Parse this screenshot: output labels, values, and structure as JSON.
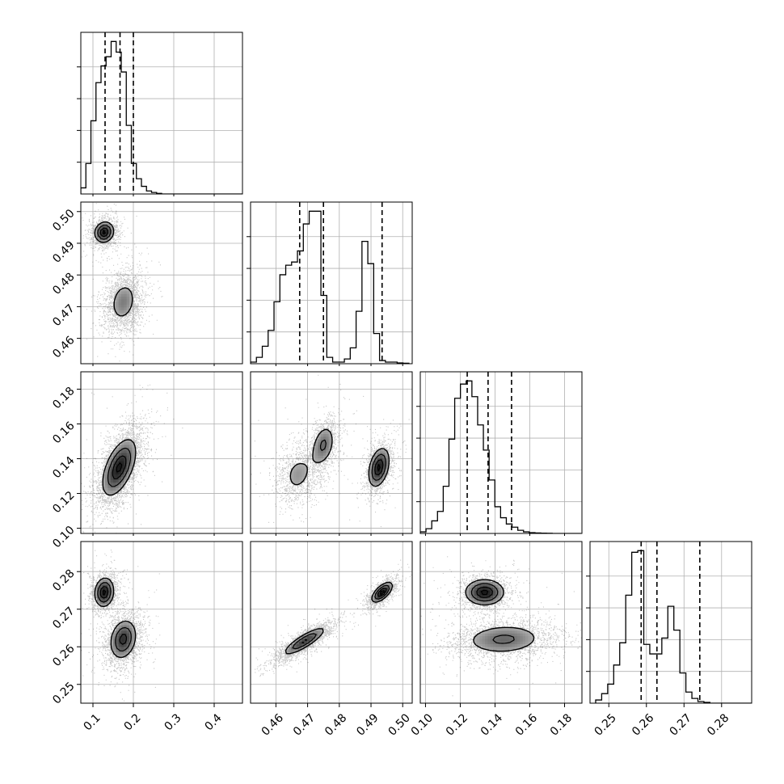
{
  "chart_data": {
    "type": "corner",
    "title": "",
    "grid": true,
    "parameters": [
      {
        "xlim": [
          0.07,
          0.47
        ],
        "ticks": [
          0.1,
          0.2,
          0.3,
          0.4
        ],
        "tick_labels": [
          "0.1",
          "0.2",
          "0.3",
          "0.4"
        ],
        "quantiles": [
          0.13,
          0.167,
          0.2
        ],
        "histogram": {
          "bin_start": 0.07,
          "bin_width": 0.0125,
          "counts": [
            0.04,
            0.2,
            0.48,
            0.73,
            0.84,
            0.9,
            1.0,
            0.93,
            0.8,
            0.45,
            0.2,
            0.1,
            0.05,
            0.02,
            0.01,
            0.004,
            0,
            0,
            0,
            0,
            0,
            0,
            0,
            0,
            0,
            0,
            0,
            0,
            0,
            0,
            0,
            0
          ]
        }
      },
      {
        "xlim": [
          0.452,
          0.503
        ],
        "ticks": [
          0.46,
          0.47,
          0.48,
          0.49,
          0.5
        ],
        "tick_labels": [
          "0.46",
          "0.47",
          "0.48",
          "0.49",
          "0.50"
        ],
        "quantiles": [
          0.4675,
          0.475,
          0.4935
        ],
        "histogram": {
          "bin_start": 0.452,
          "bin_width": 0.00185,
          "counts": [
            0.01,
            0.04,
            0.11,
            0.21,
            0.39,
            0.56,
            0.62,
            0.64,
            0.71,
            0.88,
            0.96,
            0.96,
            0.43,
            0.04,
            0.01,
            0.01,
            0.03,
            0.1,
            0.33,
            0.77,
            0.63,
            0.19,
            0.02,
            0.01,
            0.01,
            0.005,
            0.003
          ]
        }
      },
      {
        "xlim": [
          0.097,
          0.19
        ],
        "ticks": [
          0.1,
          0.12,
          0.14,
          0.16,
          0.18
        ],
        "tick_labels": [
          "0.10",
          "0.12",
          "0.14",
          "0.16",
          "0.18"
        ],
        "quantiles": [
          0.124,
          0.136,
          0.1495
        ],
        "histogram": {
          "bin_start": 0.097,
          "bin_width": 0.0033,
          "counts": [
            0.01,
            0.03,
            0.08,
            0.14,
            0.3,
            0.6,
            0.86,
            0.95,
            0.97,
            0.87,
            0.69,
            0.53,
            0.34,
            0.17,
            0.1,
            0.06,
            0.04,
            0.02,
            0.01,
            0.005,
            0.003,
            0.002,
            0.001,
            0,
            0,
            0,
            0,
            0
          ]
        }
      },
      {
        "xlim": [
          0.245,
          0.288
        ],
        "ticks": [
          0.25,
          0.26,
          0.27,
          0.28
        ],
        "tick_labels": [
          "0.25",
          "0.26",
          "0.27",
          "0.28"
        ],
        "quantiles": [
          0.2586,
          0.2628,
          0.2742
        ],
        "histogram": {
          "bin_start": 0.2465,
          "bin_width": 0.0016,
          "counts": [
            0.02,
            0.06,
            0.12,
            0.24,
            0.38,
            0.68,
            0.95,
            0.96,
            0.37,
            0.31,
            0.31,
            0.41,
            0.61,
            0.46,
            0.19,
            0.07,
            0.03,
            0.01,
            0.005,
            0,
            0,
            0,
            0,
            0,
            0,
            0,
            0
          ]
        }
      }
    ],
    "contour_levels": [
      0.25,
      0.6,
      1.0,
      1.45
    ],
    "pair_modes": {
      "1_0": [
        {
          "mx": 0.128,
          "my": 0.4935,
          "sx": 0.016,
          "sy": 0.0022,
          "rho": 0.1,
          "w": 0.38
        },
        {
          "mx": 0.175,
          "my": 0.4715,
          "sx": 0.023,
          "sy": 0.0045,
          "rho": 0.2,
          "w": 0.62
        }
      ],
      "2_0": [
        {
          "mx": 0.165,
          "my": 0.135,
          "sx": 0.028,
          "sy": 0.011,
          "rho": 0.55,
          "w": 1.0
        }
      ],
      "2_1": [
        {
          "mx": 0.467,
          "my": 0.131,
          "sx": 0.0035,
          "sy": 0.0085,
          "rho": 0.2,
          "w": 0.32
        },
        {
          "mx": 0.475,
          "my": 0.148,
          "sx": 0.0025,
          "sy": 0.008,
          "rho": 0.3,
          "w": 0.3
        },
        {
          "mx": 0.4925,
          "my": 0.135,
          "sx": 0.0022,
          "sy": 0.0075,
          "rho": 0.35,
          "w": 0.38
        }
      ],
      "3_0": [
        {
          "mx": 0.128,
          "my": 0.2745,
          "sx": 0.016,
          "sy": 0.0026,
          "rho": 0.1,
          "w": 0.38
        },
        {
          "mx": 0.175,
          "my": 0.262,
          "sx": 0.022,
          "sy": 0.0035,
          "rho": 0.2,
          "w": 0.62
        }
      ],
      "3_1": [
        {
          "mx": 0.469,
          "my": 0.2615,
          "sx": 0.0045,
          "sy": 0.0025,
          "rho": 0.85,
          "w": 0.62
        },
        {
          "mx": 0.4935,
          "my": 0.2745,
          "sx": 0.0022,
          "sy": 0.0018,
          "rho": 0.65,
          "w": 0.38
        }
      ],
      "3_2": [
        {
          "mx": 0.134,
          "my": 0.2745,
          "sx": 0.0075,
          "sy": 0.0023,
          "rho": 0.0,
          "w": 0.38
        },
        {
          "mx": 0.145,
          "my": 0.262,
          "sx": 0.0155,
          "sy": 0.0028,
          "rho": 0.1,
          "w": 0.62
        }
      ]
    }
  }
}
